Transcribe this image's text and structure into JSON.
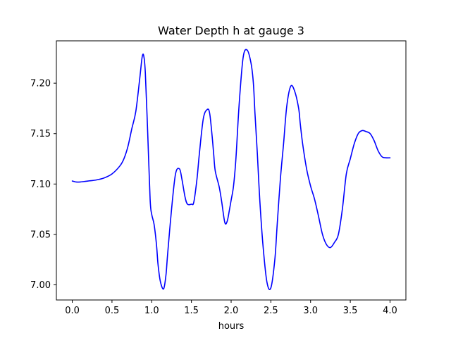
{
  "chart_data": {
    "type": "line",
    "title": "Water Depth h at gauge 3",
    "xlabel": "hours",
    "ylabel": "",
    "xlim": [
      -0.2,
      4.2
    ],
    "ylim": [
      6.985,
      7.242
    ],
    "xticks": [
      0.0,
      0.5,
      1.0,
      1.5,
      2.0,
      2.5,
      3.0,
      3.5,
      4.0
    ],
    "xtick_labels": [
      "0.0",
      "0.5",
      "1.0",
      "1.5",
      "2.0",
      "2.5",
      "3.0",
      "3.5",
      "4.0"
    ],
    "yticks": [
      7.0,
      7.05,
      7.1,
      7.15,
      7.2
    ],
    "ytick_labels": [
      "7.00",
      "7.05",
      "7.10",
      "7.15",
      "7.20"
    ],
    "grid": false,
    "series": [
      {
        "color": "#0000ff",
        "x": [
          0.0,
          0.05,
          0.1,
          0.15,
          0.2,
          0.3,
          0.4,
          0.5,
          0.6,
          0.65,
          0.7,
          0.75,
          0.8,
          0.85,
          0.88,
          0.9,
          0.92,
          0.95,
          0.98,
          1.0,
          1.03,
          1.06,
          1.08,
          1.11,
          1.15,
          1.18,
          1.2,
          1.25,
          1.3,
          1.35,
          1.38,
          1.42,
          1.45,
          1.5,
          1.53,
          1.57,
          1.6,
          1.65,
          1.7,
          1.73,
          1.76,
          1.78,
          1.8,
          1.85,
          1.88,
          1.92,
          1.95,
          1.98,
          2.0,
          2.03,
          2.06,
          2.1,
          2.15,
          2.2,
          2.25,
          2.28,
          2.3,
          2.33,
          2.36,
          2.4,
          2.45,
          2.5,
          2.55,
          2.58,
          2.62,
          2.66,
          2.7,
          2.75,
          2.8,
          2.85,
          2.87,
          2.9,
          2.95,
          3.0,
          3.05,
          3.1,
          3.15,
          3.2,
          3.25,
          3.3,
          3.35,
          3.4,
          3.45,
          3.5,
          3.55,
          3.6,
          3.65,
          3.7,
          3.75,
          3.8,
          3.85,
          3.9,
          3.95,
          4.0
        ],
        "y": [
          7.103,
          7.102,
          7.102,
          7.1025,
          7.103,
          7.104,
          7.106,
          7.11,
          7.118,
          7.125,
          7.137,
          7.155,
          7.172,
          7.205,
          7.226,
          7.227,
          7.21,
          7.15,
          7.085,
          7.07,
          7.06,
          7.04,
          7.02,
          7.003,
          6.996,
          7.01,
          7.03,
          7.075,
          7.11,
          7.115,
          7.105,
          7.087,
          7.08,
          7.08,
          7.082,
          7.105,
          7.13,
          7.165,
          7.174,
          7.17,
          7.148,
          7.13,
          7.113,
          7.097,
          7.083,
          7.062,
          7.063,
          7.075,
          7.084,
          7.098,
          7.125,
          7.178,
          7.225,
          7.233,
          7.22,
          7.2,
          7.17,
          7.13,
          7.085,
          7.04,
          7.003,
          6.997,
          7.025,
          7.06,
          7.105,
          7.14,
          7.177,
          7.197,
          7.192,
          7.175,
          7.16,
          7.14,
          7.115,
          7.098,
          7.085,
          7.068,
          7.05,
          7.04,
          7.037,
          7.042,
          7.05,
          7.075,
          7.11,
          7.125,
          7.14,
          7.15,
          7.153,
          7.152,
          7.15,
          7.143,
          7.133,
          7.127,
          7.126,
          7.126
        ]
      }
    ]
  }
}
